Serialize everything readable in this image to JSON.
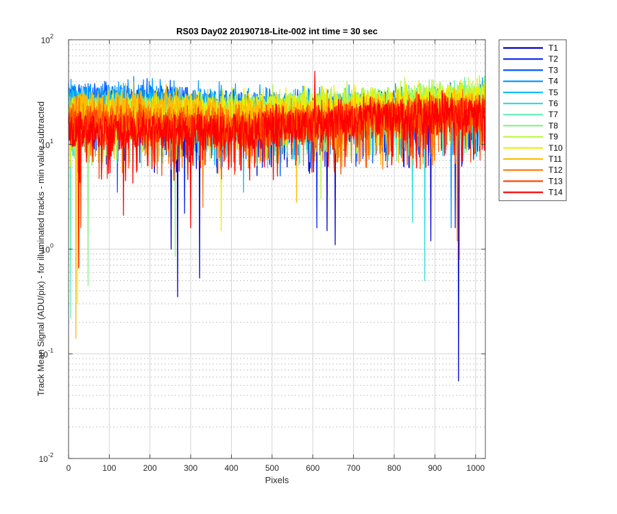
{
  "chart_data": {
    "type": "line",
    "title": "RS03 Day02 20190718-Lite-002 int time = 30 sec",
    "xlabel": "Pixels",
    "ylabel": "Track Mean Signal (ADU/pix) - for illuminated tracks - min value subtracted",
    "xlim": [
      0,
      1024
    ],
    "ylim": [
      0.01,
      100
    ],
    "yscale": "log",
    "grid": true,
    "legend_position": "outside-top-right",
    "x_ticks": [
      "0",
      "100",
      "200",
      "300",
      "400",
      "500",
      "600",
      "700",
      "800",
      "900",
      "1000"
    ],
    "y_ticks": [
      {
        "base": "10",
        "exp": "-2",
        "value": 0.01
      },
      {
        "base": "10",
        "exp": "-1",
        "value": 0.1
      },
      {
        "base": "10",
        "exp": "0",
        "value": 1
      },
      {
        "base": "10",
        "exp": "1",
        "value": 10
      },
      {
        "base": "10",
        "exp": "2",
        "value": 100
      }
    ],
    "series": [
      {
        "name": "T1",
        "color": "#0000cc",
        "baseline": [
          [
            0,
            20
          ],
          [
            200,
            18
          ],
          [
            400,
            16
          ],
          [
            600,
            17
          ],
          [
            750,
            19
          ],
          [
            900,
            20
          ],
          [
            1024,
            20
          ]
        ],
        "dips": [
          [
            268,
            0.35
          ],
          [
            322,
            0.53
          ],
          [
            958,
            0.055
          ],
          [
            252,
            1.0
          ],
          [
            655,
            1.1
          ],
          [
            635,
            1.5
          ],
          [
            890,
            1.2
          ]
        ],
        "spikes": []
      },
      {
        "name": "T2",
        "color": "#0022ee",
        "baseline": [
          [
            0,
            22
          ],
          [
            200,
            20
          ],
          [
            400,
            18
          ],
          [
            600,
            18
          ],
          [
            750,
            20
          ],
          [
            900,
            21
          ],
          [
            1024,
            22
          ]
        ],
        "dips": [
          [
            285,
            2.2
          ],
          [
            610,
            1.6
          ],
          [
            950,
            1.6
          ]
        ],
        "spikes": []
      },
      {
        "name": "T3",
        "color": "#0055ff",
        "baseline": [
          [
            0,
            26
          ],
          [
            200,
            27
          ],
          [
            400,
            24
          ],
          [
            600,
            20
          ],
          [
            750,
            22
          ],
          [
            900,
            24
          ],
          [
            1024,
            26
          ]
        ],
        "dips": [
          [
            120,
            3.5
          ],
          [
            520,
            5
          ]
        ],
        "spikes": [
          [
            120,
            40
          ],
          [
            250,
            41
          ]
        ]
      },
      {
        "name": "T4",
        "color": "#0099ff",
        "baseline": [
          [
            0,
            28
          ],
          [
            200,
            27
          ],
          [
            400,
            24
          ],
          [
            600,
            22
          ],
          [
            750,
            23
          ],
          [
            900,
            25
          ],
          [
            1024,
            27
          ]
        ],
        "dips": [
          [
            940,
            1.6
          ]
        ],
        "spikes": []
      },
      {
        "name": "T5",
        "color": "#00bbff",
        "baseline": [
          [
            0,
            24
          ],
          [
            200,
            23
          ],
          [
            400,
            20
          ],
          [
            600,
            20
          ],
          [
            750,
            21
          ],
          [
            900,
            23
          ],
          [
            1024,
            24
          ]
        ],
        "dips": [
          [
            430,
            3.5
          ]
        ],
        "spikes": []
      },
      {
        "name": "T6",
        "color": "#33dddd",
        "baseline": [
          [
            0,
            22
          ],
          [
            200,
            21
          ],
          [
            400,
            19
          ],
          [
            600,
            19
          ],
          [
            750,
            20
          ],
          [
            900,
            22
          ],
          [
            1024,
            23
          ]
        ],
        "dips": [
          [
            875,
            0.5
          ],
          [
            845,
            1.8
          ]
        ],
        "spikes": []
      },
      {
        "name": "T7",
        "color": "#66eebb",
        "baseline": [
          [
            0,
            21
          ],
          [
            200,
            20
          ],
          [
            400,
            19
          ],
          [
            600,
            20
          ],
          [
            750,
            22
          ],
          [
            900,
            25
          ],
          [
            1024,
            28
          ]
        ],
        "dips": [
          [
            5,
            0.22
          ]
        ],
        "spikes": []
      },
      {
        "name": "T8",
        "color": "#88f088",
        "baseline": [
          [
            0,
            20
          ],
          [
            200,
            20
          ],
          [
            400,
            20
          ],
          [
            600,
            22
          ],
          [
            750,
            24
          ],
          [
            900,
            26
          ],
          [
            1024,
            28
          ]
        ],
        "dips": [
          [
            48,
            0.45
          ],
          [
            262,
            0.85
          ]
        ],
        "spikes": []
      },
      {
        "name": "T9",
        "color": "#bbf844",
        "baseline": [
          [
            0,
            20
          ],
          [
            200,
            21
          ],
          [
            400,
            22
          ],
          [
            600,
            24
          ],
          [
            750,
            26
          ],
          [
            900,
            28
          ],
          [
            1024,
            30
          ]
        ],
        "dips": [
          [
            620,
            3
          ]
        ],
        "spikes": [
          [
            1010,
            40
          ]
        ]
      },
      {
        "name": "T10",
        "color": "#eeee00",
        "baseline": [
          [
            0,
            19
          ],
          [
            200,
            20
          ],
          [
            400,
            21
          ],
          [
            600,
            22
          ],
          [
            750,
            23
          ],
          [
            900,
            25
          ],
          [
            1024,
            27
          ]
        ],
        "dips": [
          [
            22,
            0.3
          ],
          [
            375,
            1.5
          ]
        ],
        "spikes": []
      },
      {
        "name": "T11",
        "color": "#ffbb00",
        "baseline": [
          [
            0,
            22
          ],
          [
            200,
            24
          ],
          [
            400,
            20
          ],
          [
            600,
            19
          ],
          [
            750,
            20
          ],
          [
            900,
            22
          ],
          [
            1024,
            23
          ]
        ],
        "dips": [
          [
            18,
            0.14
          ],
          [
            560,
            2.8
          ]
        ],
        "spikes": [
          [
            160,
            40
          ]
        ]
      },
      {
        "name": "T12",
        "color": "#ff7700",
        "baseline": [
          [
            0,
            18
          ],
          [
            200,
            17
          ],
          [
            400,
            16
          ],
          [
            600,
            17
          ],
          [
            750,
            19
          ],
          [
            900,
            21
          ],
          [
            1024,
            22
          ]
        ],
        "dips": [
          [
            955,
            1.2
          ],
          [
            330,
            2.5
          ]
        ],
        "spikes": []
      },
      {
        "name": "T13",
        "color": "#ff4400",
        "baseline": [
          [
            0,
            16
          ],
          [
            200,
            15
          ],
          [
            400,
            15
          ],
          [
            600,
            16
          ],
          [
            750,
            18
          ],
          [
            900,
            19
          ],
          [
            1024,
            20
          ]
        ],
        "dips": [
          [
            960,
            0.8
          ],
          [
            30,
            1.6
          ]
        ],
        "spikes": []
      },
      {
        "name": "T14",
        "color": "#ff0000",
        "baseline": [
          [
            0,
            14
          ],
          [
            200,
            14
          ],
          [
            400,
            14
          ],
          [
            600,
            16
          ],
          [
            750,
            18
          ],
          [
            900,
            20
          ],
          [
            1024,
            21
          ]
        ],
        "dips": [
          [
            25,
            0.66
          ],
          [
            135,
            2.1
          ],
          [
            300,
            1.6
          ]
        ],
        "spikes": [
          [
            605,
            50
          ]
        ]
      }
    ]
  }
}
